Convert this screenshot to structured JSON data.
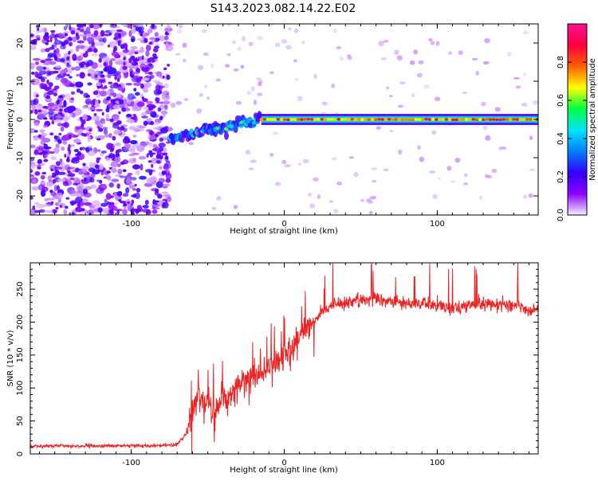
{
  "title": "S143.2023.082.14.22.E02",
  "chart_data": [
    {
      "type": "heatmap",
      "name": "spectrogram",
      "xlabel": "Height of straight line (km)",
      "ylabel": "Frequency (Hz)",
      "xlim": [
        -166,
        166
      ],
      "ylim": [
        -25,
        25
      ],
      "xticks": [
        -100,
        0,
        100
      ],
      "yticks": [
        -20,
        -10,
        0,
        10,
        20
      ],
      "colorbar": {
        "label": "Normalized spectral amplitude",
        "range": [
          0.0,
          1.0
        ],
        "ticks": [
          "0.0",
          "0.2",
          "0.4",
          "0.6",
          "0.8"
        ],
        "colormap": [
          "#f5f0ff",
          "#8a00ff",
          "#3300ff",
          "#0080ff",
          "#00e5ff",
          "#00ff40",
          "#ffff00",
          "#ff6000",
          "#ff0040",
          "#ff1090"
        ]
      },
      "features": {
        "noise_region_x": [
          -166,
          -75
        ],
        "transition_x": [
          -75,
          -15
        ],
        "stable_line_x": [
          -15,
          166
        ],
        "stable_frequency_hz": 0.0,
        "transition_frequency_hz": [
          -5,
          0
        ]
      }
    },
    {
      "type": "line",
      "name": "snr",
      "xlabel": "Height of straight line (km)",
      "ylabel": "SNR (10 * v/v)",
      "xlim": [
        -166,
        166
      ],
      "ylim": [
        0,
        290
      ],
      "xticks": [
        -100,
        0,
        100
      ],
      "yticks": [
        0,
        50,
        100,
        150,
        200,
        250
      ],
      "color": "#ee2222",
      "series": [
        {
          "name": "SNR",
          "x": [
            -166,
            -120,
            -80,
            -70,
            -64,
            -60,
            -55,
            -50,
            -45,
            -40,
            -35,
            -30,
            -25,
            -20,
            -15,
            -10,
            -5,
            0,
            5,
            10,
            15,
            20,
            25,
            30,
            40,
            50,
            60,
            70,
            80,
            90,
            100,
            110,
            120,
            130,
            140,
            150,
            160,
            166
          ],
          "y": [
            12,
            12,
            13,
            14,
            30,
            70,
            90,
            80,
            70,
            85,
            95,
            105,
            110,
            115,
            120,
            130,
            140,
            150,
            165,
            180,
            195,
            205,
            215,
            225,
            230,
            235,
            235,
            230,
            230,
            228,
            225,
            222,
            225,
            228,
            228,
            225,
            220,
            220
          ]
        }
      ]
    }
  ]
}
